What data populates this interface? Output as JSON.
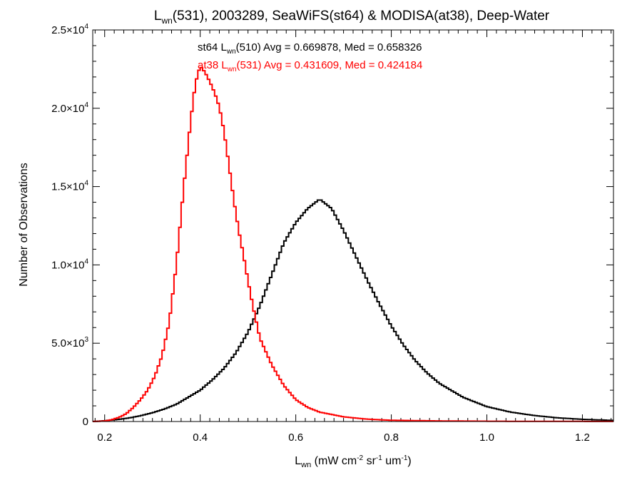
{
  "chart_data": {
    "type": "line",
    "title_parts": {
      "lead": "L",
      "sub": "wn",
      "rest": "(531), 2003289, SeaWiFS(st64) & MODISA(at38), Deep-Water"
    },
    "ylabel": "Number of Observations",
    "xlabel_parts": {
      "a": "L",
      "a_sub": "wn",
      "b": " (mW cm",
      "b_sup": "-2",
      "c": " sr",
      "c_sup": "-1",
      "d": " um",
      "d_sup": "-1",
      "e": ")"
    },
    "xlim": [
      0.175,
      1.265
    ],
    "ylim": [
      0,
      25000
    ],
    "x_ticks": [
      {
        "v": 0.2,
        "label": "0.2"
      },
      {
        "v": 0.4,
        "label": "0.4"
      },
      {
        "v": 0.6,
        "label": "0.6"
      },
      {
        "v": 0.8,
        "label": "0.8"
      },
      {
        "v": 1.0,
        "label": "1.0"
      },
      {
        "v": 1.2,
        "label": "1.2"
      }
    ],
    "y_ticks": [
      {
        "v": 0,
        "mant": "0",
        "exp": ""
      },
      {
        "v": 5000,
        "mant": "5.0×10",
        "exp": "3"
      },
      {
        "v": 10000,
        "mant": "1.0×10",
        "exp": "4"
      },
      {
        "v": 15000,
        "mant": "1.5×10",
        "exp": "4"
      },
      {
        "v": 20000,
        "mant": "2.0×10",
        "exp": "4"
      },
      {
        "v": 25000,
        "mant": "2.5×10",
        "exp": "4"
      }
    ],
    "annotations": [
      {
        "pre": "st64 L",
        "sub": "wn",
        "post": "(510) Avg = 0.669878, Med = 0.658326",
        "color": "#000000"
      },
      {
        "pre": "at38 L",
        "sub": "wn",
        "post": "(531) Avg = 0.431609, Med = 0.424184",
        "color": "#ff0000"
      }
    ],
    "series": [
      {
        "color": "#000000",
        "x": [
          0.175,
          0.2,
          0.225,
          0.25,
          0.275,
          0.3,
          0.325,
          0.35,
          0.375,
          0.4,
          0.425,
          0.45,
          0.475,
          0.5,
          0.525,
          0.55,
          0.575,
          0.6,
          0.625,
          0.65,
          0.675,
          0.7,
          0.725,
          0.75,
          0.775,
          0.8,
          0.825,
          0.85,
          0.875,
          0.9,
          0.95,
          1.0,
          1.05,
          1.1,
          1.15,
          1.2,
          1.265
        ],
        "y": [
          0,
          50,
          120,
          220,
          370,
          560,
          800,
          1100,
          1550,
          2000,
          2650,
          3400,
          4400,
          5700,
          7400,
          9400,
          11400,
          12700,
          13600,
          14200,
          13600,
          12200,
          10600,
          9000,
          7500,
          6100,
          4900,
          3900,
          3100,
          2450,
          1550,
          950,
          600,
          380,
          230,
          140,
          70
        ]
      },
      {
        "color": "#ff0000",
        "x": [
          0.175,
          0.2,
          0.215,
          0.23,
          0.245,
          0.26,
          0.275,
          0.29,
          0.305,
          0.32,
          0.335,
          0.35,
          0.365,
          0.38,
          0.39,
          0.4,
          0.41,
          0.42,
          0.43,
          0.44,
          0.45,
          0.46,
          0.47,
          0.48,
          0.49,
          0.5,
          0.51,
          0.525,
          0.55,
          0.575,
          0.6,
          0.625,
          0.65,
          0.7,
          0.75,
          0.8,
          0.9,
          1.0,
          1.1,
          1.265
        ],
        "y": [
          0,
          30,
          120,
          260,
          500,
          900,
          1400,
          2000,
          2900,
          4200,
          6300,
          10000,
          14800,
          19200,
          21600,
          22700,
          22300,
          21700,
          21000,
          20100,
          18500,
          16400,
          14200,
          12300,
          10700,
          9000,
          7400,
          5300,
          3600,
          2300,
          1400,
          900,
          600,
          300,
          150,
          80,
          40,
          20,
          10,
          5
        ]
      }
    ]
  }
}
